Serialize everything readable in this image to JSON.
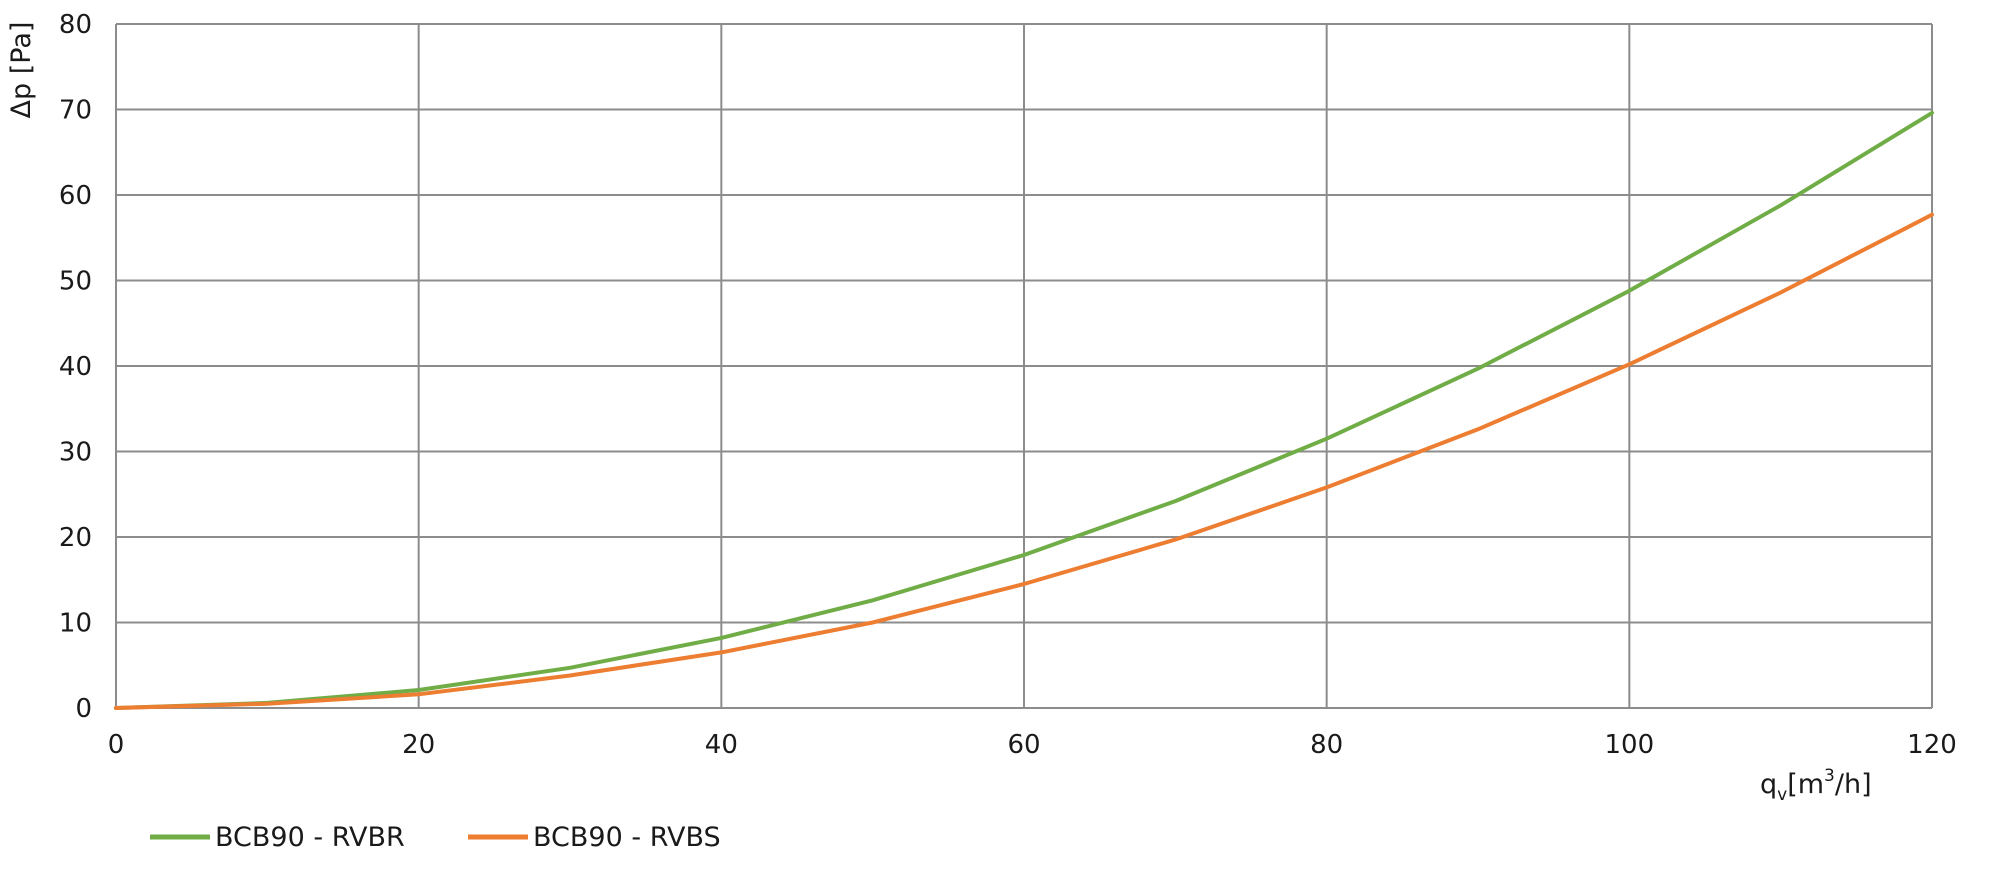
{
  "chart_data": {
    "type": "line",
    "title": "",
    "ylabel": "Δp [Pa]",
    "xlabel": {
      "main": "q",
      "sub": "v",
      "unit_pre": "[m",
      "unit_sup": "3",
      "unit_post": "/h]"
    },
    "xlim": [
      0,
      120
    ],
    "ylim": [
      0,
      80
    ],
    "xticks": [
      0,
      20,
      40,
      60,
      80,
      100,
      120
    ],
    "yticks": [
      0,
      10,
      20,
      30,
      40,
      50,
      60,
      70,
      80
    ],
    "grid": true,
    "legend_position": "bottom-left",
    "x": [
      0,
      10,
      20,
      30,
      40,
      50,
      60,
      70,
      80,
      90,
      100,
      110,
      120
    ],
    "series": [
      {
        "name": "BCB90 - RVBR",
        "color": "#70ad47",
        "values": [
          0,
          0.6,
          2.1,
          4.7,
          8.2,
          12.6,
          17.9,
          24.2,
          31.5,
          39.7,
          48.8,
          58.8,
          69.6
        ]
      },
      {
        "name": "BCB90 - RVBS",
        "color": "#ed7d31",
        "values": [
          0,
          0.5,
          1.6,
          3.8,
          6.5,
          10.0,
          14.5,
          19.7,
          25.8,
          32.6,
          40.2,
          48.6,
          57.7
        ]
      }
    ]
  }
}
